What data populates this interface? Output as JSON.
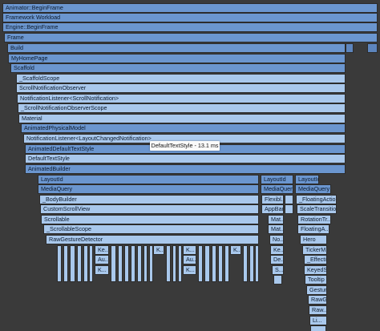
{
  "flame": {
    "rows": [
      {
        "label": "Animator::BeginFrame",
        "variant": "hl"
      },
      {
        "label": "Framework Workload",
        "variant": ""
      },
      {
        "label": "Engine::BeginFrame",
        "variant": ""
      },
      {
        "label": "Frame",
        "variant": ""
      },
      {
        "label": "Build",
        "variant": ""
      },
      {
        "label": "MyHomePage",
        "variant": ""
      },
      {
        "label": "Scaffold",
        "variant": ""
      },
      {
        "label": "_ScaffoldScope",
        "variant": "light"
      },
      {
        "label": "ScrollNotificationObserver",
        "variant": "light"
      },
      {
        "label": "NotificationListener<ScrollNotification>",
        "variant": "light"
      },
      {
        "label": "_ScrollNotificationObserverScope",
        "variant": "light"
      },
      {
        "label": "Material",
        "variant": "light"
      },
      {
        "label": "AnimatedPhysicalModel",
        "variant": ""
      },
      {
        "label": "NotificationListener<LayoutChangedNotification>",
        "variant": "light"
      },
      {
        "label": "AnimatedDefaultTextStyle",
        "variant": ""
      },
      {
        "label": "DefaultTextStyle",
        "variant": "light"
      },
      {
        "label": "AnimatedBuilder",
        "variant": ""
      }
    ],
    "col_a": [
      "LayoutId",
      "MediaQuery",
      "_BodyBuilder",
      "CustomScrollView",
      "Scrollable",
      "_ScrollableScope",
      "RawGestureDetector"
    ],
    "col_b": [
      "LayoutId",
      "MediaQuery",
      "Flexibl...",
      "AppBar",
      "Mat...",
      "Mat...",
      "No...",
      "Ke...",
      "De...",
      "S..."
    ],
    "col_c": [
      "LayoutId:",
      "MediaQuery",
      "_FloatingActio...",
      "ScaleTransition",
      "RotationTr...",
      "FloatingA...",
      "Hero",
      "TickerM...",
      "_Effecti...",
      "KeyedS...",
      "Tooltip",
      "Gestur...",
      "RawGe...",
      "Raw...",
      "Li..."
    ],
    "col_d": [
      "Ke...",
      "Au...",
      "K..."
    ],
    "col_e": [
      "K...",
      "Au...",
      "K..."
    ],
    "col_f": [
      "K..."
    ],
    "col_g": [
      "K..."
    ]
  },
  "tooltip": {
    "text": "DefaultTextStyle - 13.1 ms"
  }
}
